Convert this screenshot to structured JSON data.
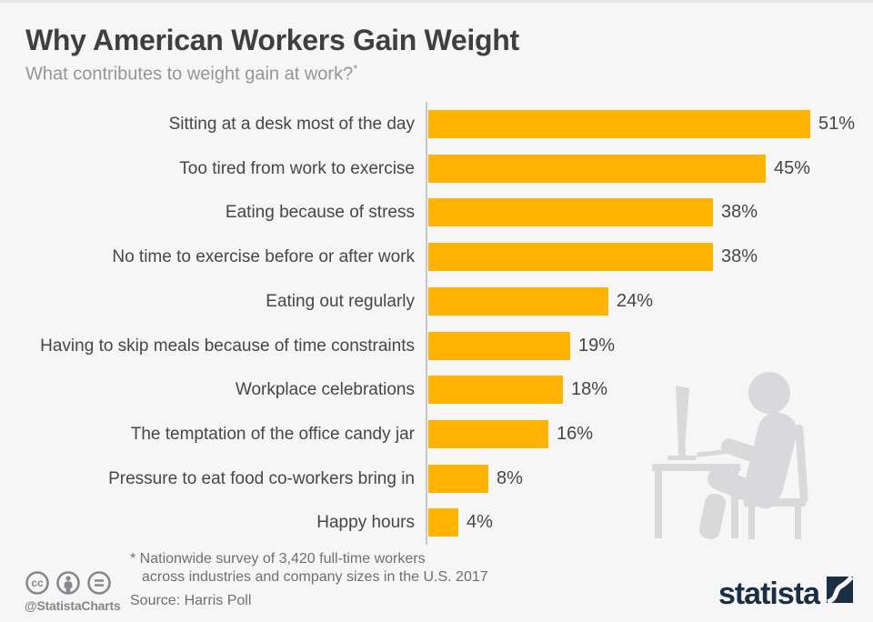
{
  "header": {
    "title": "Why American Workers Gain Weight",
    "subtitle": "What contributes to weight gain at work?",
    "subtitle_note_marker": "*"
  },
  "chart_data": {
    "type": "bar",
    "orientation": "horizontal",
    "title": "Why American Workers Gain Weight",
    "subtitle": "What contributes to weight gain at work?*",
    "categories": [
      "Sitting at a desk most of the day",
      "Too tired from work to exercise",
      "Eating because of stress",
      "No time to exercise before or after work",
      "Eating out regularly",
      "Having to skip meals because of time constraints",
      "Workplace celebrations",
      "The temptation of the office candy jar",
      "Pressure to eat food co-workers bring in",
      "Happy hours"
    ],
    "values": [
      51,
      45,
      38,
      38,
      24,
      19,
      18,
      16,
      8,
      4
    ],
    "value_suffix": "%",
    "xlim": [
      0,
      55
    ],
    "grid": false,
    "legend": false,
    "bar_color": "#FFB300"
  },
  "footer": {
    "footnote_line1": "* Nationwide survey of 3,420 full-time workers",
    "footnote_line2": "across industries and company sizes in the U.S. 2017",
    "source": "Source: Harris Poll",
    "cc_handle": "@StatistaCharts",
    "brand": "statista"
  },
  "icons": {
    "cc": "cc-icon",
    "attribution": "attribution-person-icon",
    "no_derivatives": "equals-icon",
    "brand_mark": "statista-logo-mark",
    "pictogram": "person-sitting-at-desk-pictogram"
  },
  "colors": {
    "background": "#f6f6f7",
    "bar": "#FFB300",
    "title_text": "#3f3f42",
    "subtitle_text": "#96969a",
    "label_text": "#464649",
    "footnote_text": "#6f6f73",
    "axis_line": "#c7c7ca",
    "brand_navy": "#1a2e44",
    "pictogram_gray": "#d9d9dc",
    "cc_gray": "#87878b"
  }
}
